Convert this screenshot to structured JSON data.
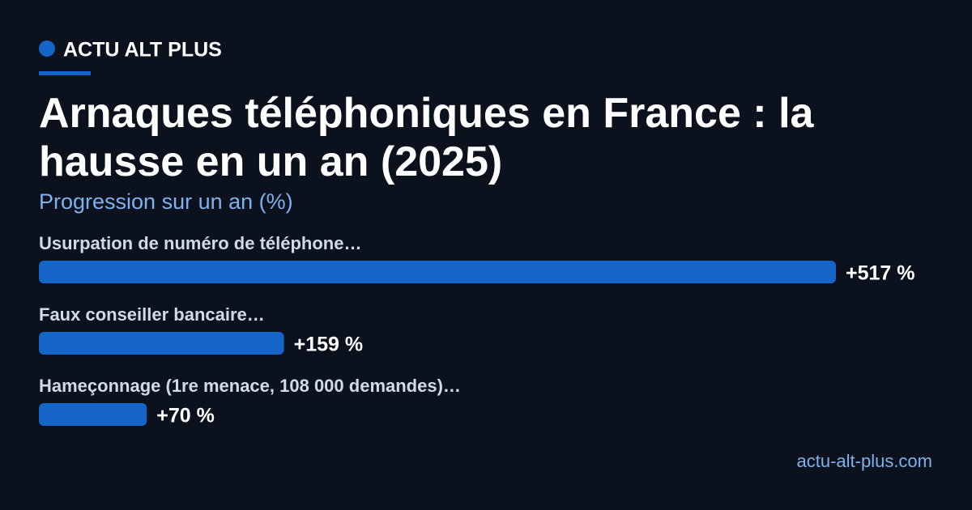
{
  "brand": "ACTU ALT PLUS",
  "footer": "actu-alt-plus.com",
  "chart_data": {
    "type": "bar",
    "orientation": "horizontal",
    "title": "Arnaques téléphoniques en France : la hausse en un an (2025)",
    "subtitle": "Progression sur un an (%)",
    "categories": [
      "Usurpation de numéro de téléphone…",
      "Faux conseiller bancaire…",
      "Hameçonnage (1re menace, 108 000 demandes)…"
    ],
    "values": [
      517,
      159,
      70
    ],
    "value_labels": [
      "+517 %",
      "+159 %",
      "+70 %"
    ],
    "color": "#1565c8"
  }
}
